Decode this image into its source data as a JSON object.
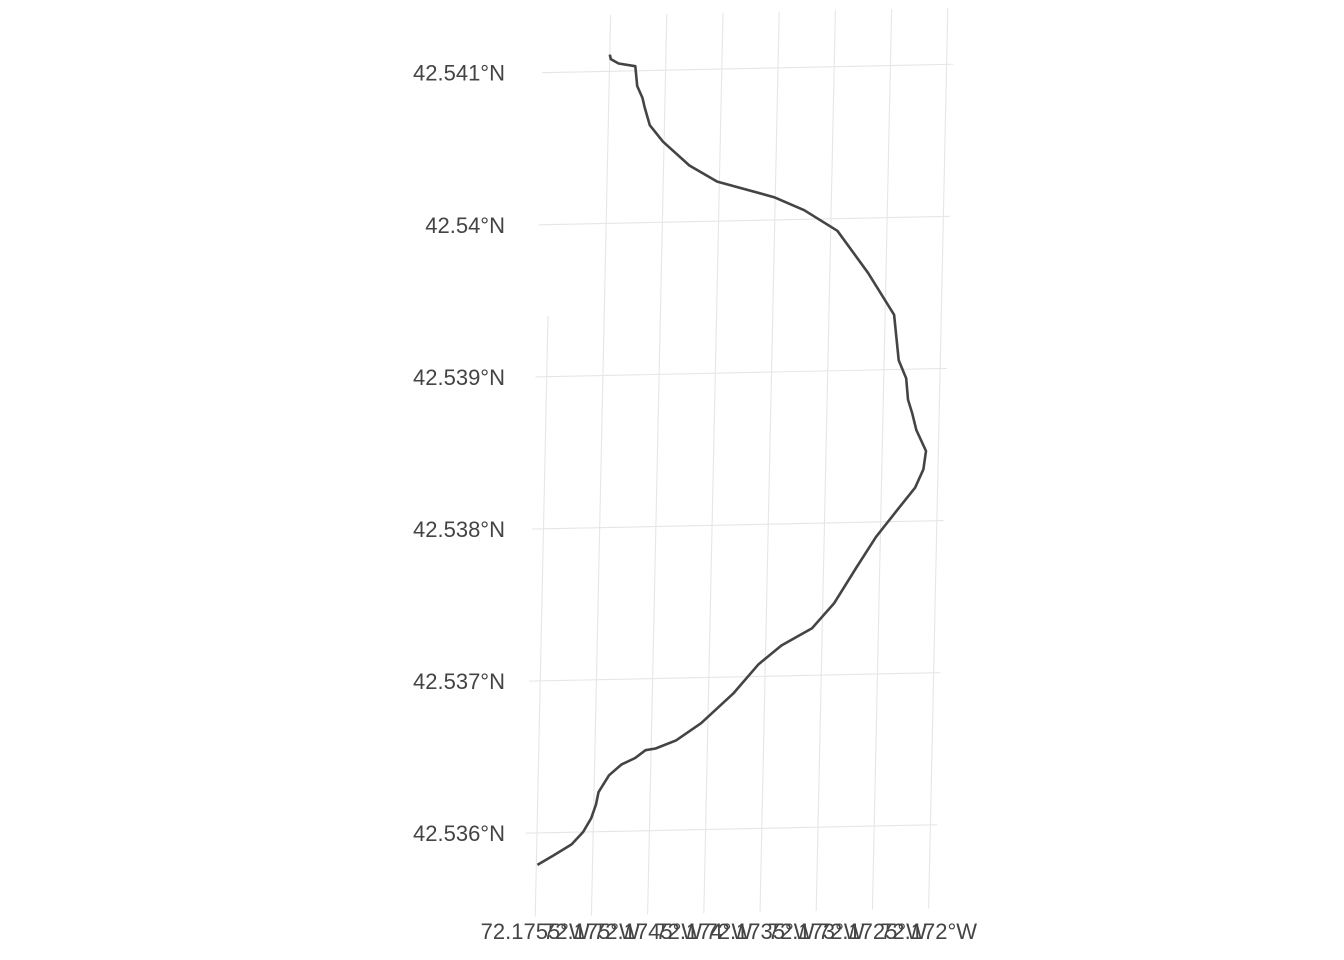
{
  "chart_data": {
    "type": "line",
    "title": "",
    "xlabel": "",
    "ylabel": "",
    "grid": true,
    "projection": "projected lat/lon graticule (slightly rotated)",
    "x_ticks": [
      {
        "value": -72.1755,
        "label": "72.1755°W"
      },
      {
        "value": -72.175,
        "label": "72.175°W"
      },
      {
        "value": -72.1745,
        "label": "72.1745°W"
      },
      {
        "value": -72.174,
        "label": "72.174°W"
      },
      {
        "value": -72.1735,
        "label": "72.1735°W"
      },
      {
        "value": -72.173,
        "label": "72.173°W"
      },
      {
        "value": -72.1725,
        "label": "72.1725°W"
      },
      {
        "value": -72.172,
        "label": "72.172°W"
      }
    ],
    "y_ticks": [
      {
        "value": 42.536,
        "label": "42.536°N"
      },
      {
        "value": 42.537,
        "label": "42.537°N"
      },
      {
        "value": 42.538,
        "label": "42.538°N"
      },
      {
        "value": 42.539,
        "label": "42.539°N"
      },
      {
        "value": 42.54,
        "label": "42.54°N"
      },
      {
        "value": 42.541,
        "label": "42.541°N"
      }
    ],
    "xlim": [
      -72.1755,
      -72.172
    ],
    "ylim": [
      42.5358,
      42.5411
    ],
    "series": [
      {
        "color": "#444444",
        "lon": [
          -72.17549,
          -72.17535,
          -72.17519,
          -72.17509,
          -72.17502,
          -72.17498,
          -72.17496,
          -72.17487,
          -72.17476,
          -72.17464,
          -72.17455,
          -72.17446,
          -72.17428,
          -72.17406,
          -72.17378,
          -72.17356,
          -72.17336,
          -72.17309,
          -72.1729,
          -72.17271,
          -72.17254,
          -72.17235,
          -72.1722,
          -72.17213,
          -72.17211,
          -72.1722,
          -72.17224,
          -72.17228,
          -72.1723,
          -72.17237,
          -72.17242,
          -72.17266,
          -72.17294,
          -72.17324,
          -72.17351,
          -72.17402,
          -72.17427,
          -72.17451,
          -72.17463,
          -72.17468,
          -72.1747,
          -72.17475,
          -72.17477,
          -72.17492,
          -72.17499,
          -72.175
        ],
        "lat": [
          42.53579,
          42.53585,
          42.53592,
          42.536,
          42.53609,
          42.53618,
          42.53626,
          42.53637,
          42.53644,
          42.53648,
          42.53653,
          42.53654,
          42.53659,
          42.5367,
          42.53689,
          42.53708,
          42.5372,
          42.53731,
          42.53747,
          42.5377,
          42.5379,
          42.53808,
          42.53822,
          42.53834,
          42.53846,
          42.5386,
          42.53871,
          42.5388,
          42.53894,
          42.53906,
          42.53936,
          42.53964,
          42.53992,
          42.54006,
          42.54015,
          42.54026,
          42.54037,
          42.54053,
          42.54064,
          42.54076,
          42.54082,
          42.5409,
          42.54103,
          42.54105,
          42.54108,
          42.54111
        ]
      }
    ]
  }
}
